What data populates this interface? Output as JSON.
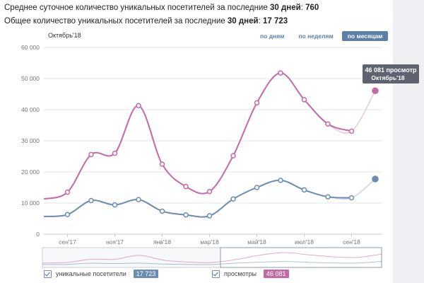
{
  "stats": {
    "line1_prefix": "Среднее суточное количество уникальных посетителей за последние ",
    "line1_days": "30 дней",
    "line1_sep": ": ",
    "line1_value": "760",
    "line2_prefix": "Общее количество уникальных посетителей за последние ",
    "line2_days": "30 дней",
    "line2_sep": ": ",
    "line2_value": "17 723"
  },
  "period_label": "Октябрь'18",
  "tabs": [
    {
      "label": "по дням",
      "active": false
    },
    {
      "label": "по неделям",
      "active": false
    },
    {
      "label": "по месяцам",
      "active": true
    }
  ],
  "tooltip": {
    "line1": "46 081 просмотр",
    "line2": "Октябрь'18"
  },
  "legend": [
    {
      "label": "уникальные посетители",
      "value": "17 723",
      "color": "#6b8db3"
    },
    {
      "label": "просмотры",
      "value": "46 081",
      "color": "#c46aa3"
    }
  ],
  "colors": {
    "views": "#c46aa3",
    "visitors": "#6b8db3",
    "grid": "#e3e6ea",
    "accent": "#5b7fa6"
  },
  "chart_data": {
    "type": "line",
    "x": [
      "2017-08",
      "2017-09",
      "2017-10",
      "2017-11",
      "2017-12",
      "2018-01",
      "2018-02",
      "2018-03",
      "2018-04",
      "2018-05",
      "2018-06",
      "2018-07",
      "2018-08",
      "2018-09",
      "2018-10"
    ],
    "x_tick_labels": [
      "сен'17",
      "ноя'17",
      "янв'18",
      "мар'18",
      "май'18",
      "июл'18",
      "сен'18"
    ],
    "x_tick_positions": [
      1,
      3,
      5,
      7,
      9,
      11,
      13
    ],
    "ylim": [
      0,
      60000
    ],
    "yticks": [
      0,
      10000,
      20000,
      30000,
      40000,
      50000,
      60000
    ],
    "ytick_labels": [
      "0",
      "10 000",
      "20 000",
      "30 000",
      "40 000",
      "50 000",
      "60 000"
    ],
    "grid": true,
    "series": [
      {
        "name": "просмотры",
        "values": [
          11300,
          13500,
          25600,
          26000,
          41300,
          22500,
          15300,
          13700,
          25200,
          42200,
          51800,
          43200,
          35400,
          33100,
          46081
        ]
      },
      {
        "name": "уникальные посетители",
        "values": [
          5700,
          6300,
          10800,
          9400,
          11100,
          7400,
          6200,
          5900,
          11300,
          15000,
          17300,
          14200,
          12000,
          11700,
          17723
        ]
      }
    ]
  }
}
